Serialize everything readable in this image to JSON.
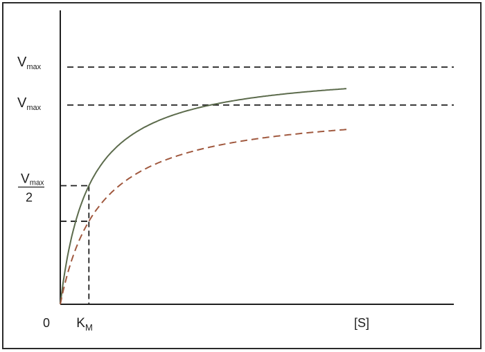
{
  "chart_data": {
    "type": "line",
    "title": "",
    "xlabel": "[S]",
    "ylabel": "",
    "origin_label": "0",
    "km_label": {
      "main": "K",
      "sub": "M"
    },
    "y_labels": [
      {
        "main": "V",
        "sub": "max",
        "level": "vmax_full"
      },
      {
        "main": "V",
        "sub": "max",
        "level": "vmax_inhibited"
      },
      {
        "numerator": "V",
        "numerator_sub": "max",
        "denominator": "2",
        "level": "half_vmax"
      }
    ],
    "series": [
      {
        "style": "solid",
        "color": "#5c6b4c",
        "vmax": 1.0,
        "km": 1.0
      },
      {
        "style": "dashed",
        "color": "#a0583e",
        "vmax": 0.84,
        "km": 1.4
      }
    ],
    "xlim": [
      0,
      10
    ],
    "ylim": [
      0,
      1.0
    ],
    "grid": false,
    "legend": "none",
    "guide_color": "#1e1e1e"
  }
}
